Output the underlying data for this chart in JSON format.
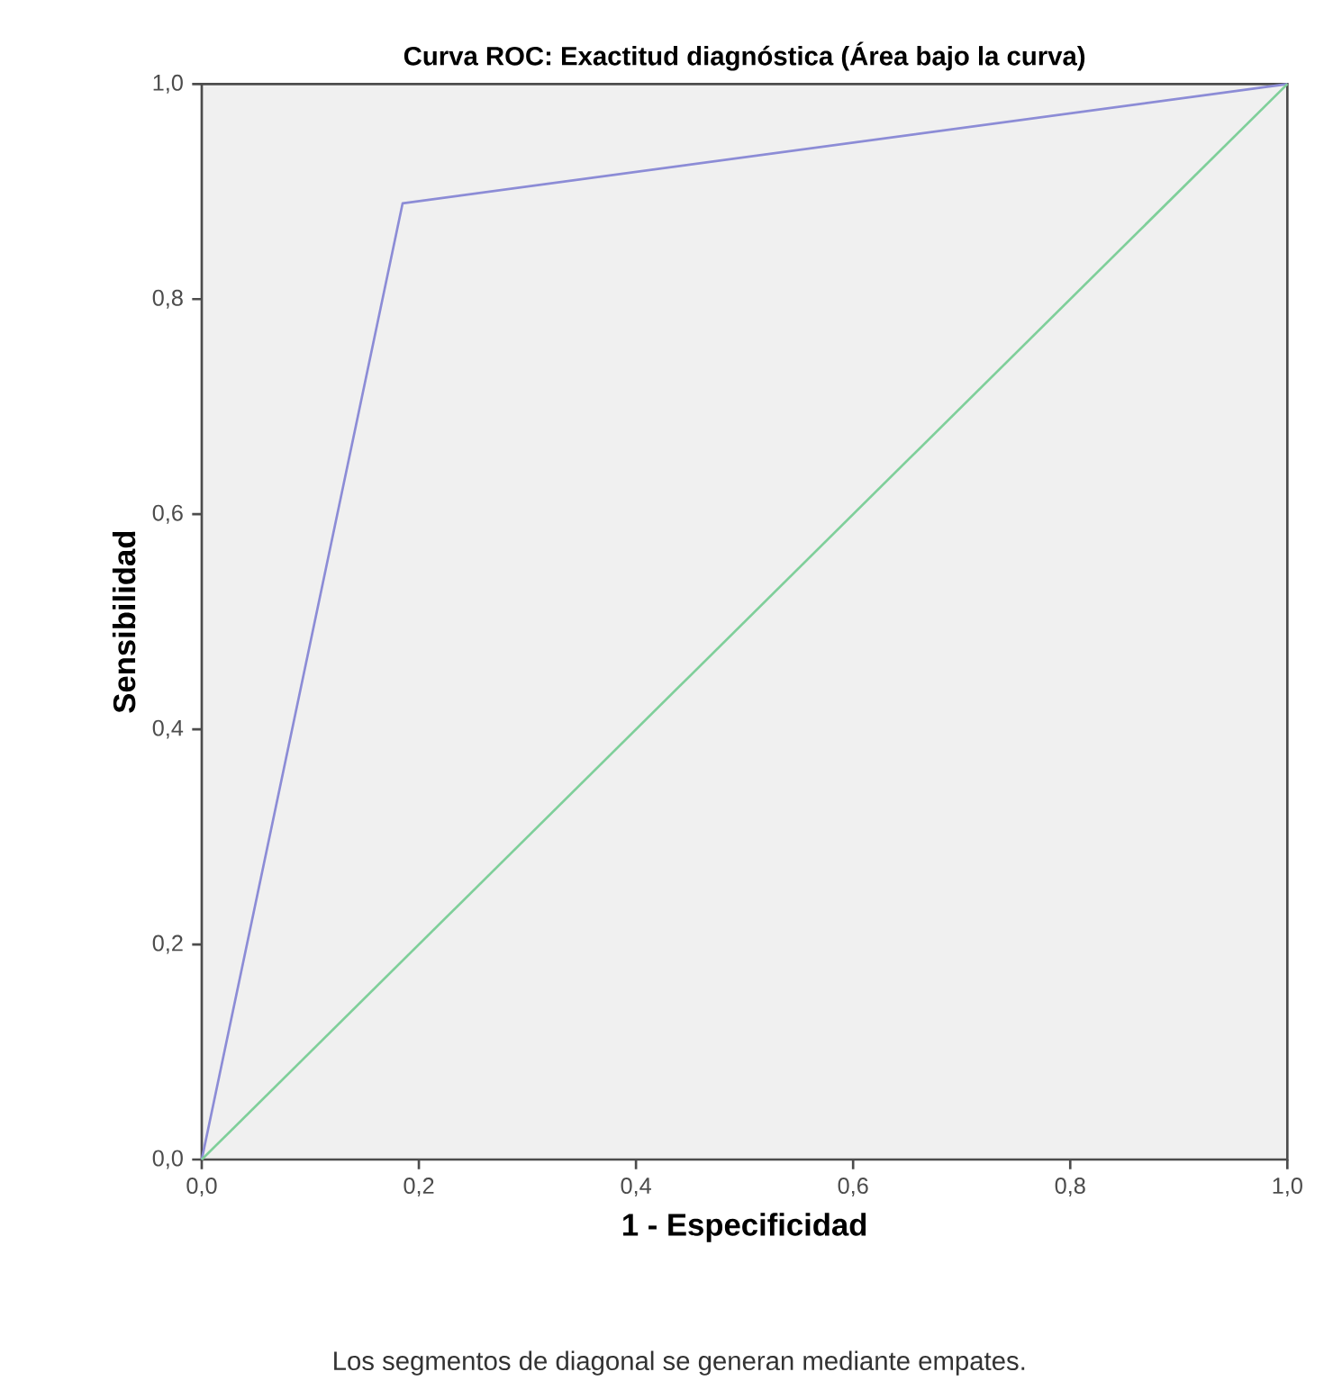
{
  "chart_data": {
    "type": "line",
    "title": "Curva ROC: Exactitud diagnóstica (Área bajo la curva)",
    "xlabel": "1 - Especificidad",
    "ylabel": "Sensibilidad",
    "annotations": [
      "Los segmentos de diagonal se generan mediante empates."
    ],
    "series": [
      {
        "color": "#8c8cd6",
        "x": [
          0,
          0.185,
          1
        ],
        "values": [
          0,
          0.889,
          1
        ]
      },
      {
        "color": "#7fcf9a",
        "x": [
          0,
          1
        ],
        "values": [
          0,
          1
        ]
      }
    ],
    "xlim": [
      0,
      1
    ],
    "ylim": [
      0,
      1
    ],
    "xticks": [
      {
        "value": 0,
        "label": "0,0"
      },
      {
        "value": 0.2,
        "label": "0,2"
      },
      {
        "value": 0.4,
        "label": "0,4"
      },
      {
        "value": 0.6,
        "label": "0,6"
      },
      {
        "value": 0.8,
        "label": "0,8"
      },
      {
        "value": 1,
        "label": "1,0"
      }
    ],
    "yticks": [
      {
        "value": 0,
        "label": "0,0"
      },
      {
        "value": 0.2,
        "label": "0,2"
      },
      {
        "value": 0.4,
        "label": "0,4"
      },
      {
        "value": 0.6,
        "label": "0,6"
      },
      {
        "value": 0.8,
        "label": "0,8"
      },
      {
        "value": 1,
        "label": "1,0"
      }
    ],
    "grid": false
  }
}
